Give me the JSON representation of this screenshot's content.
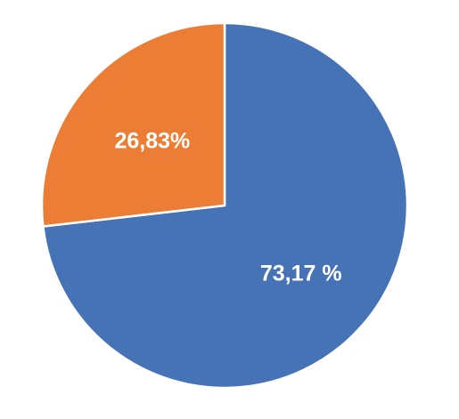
{
  "chart_data": {
    "type": "pie",
    "slices": [
      {
        "value": 73.17,
        "label": "73,17 %",
        "color": "#4672B6"
      },
      {
        "value": 26.83,
        "label": "26,83%",
        "color": "#EC7D35"
      }
    ],
    "start_angle_deg": 0,
    "direction": "clockwise",
    "legend": "none"
  }
}
